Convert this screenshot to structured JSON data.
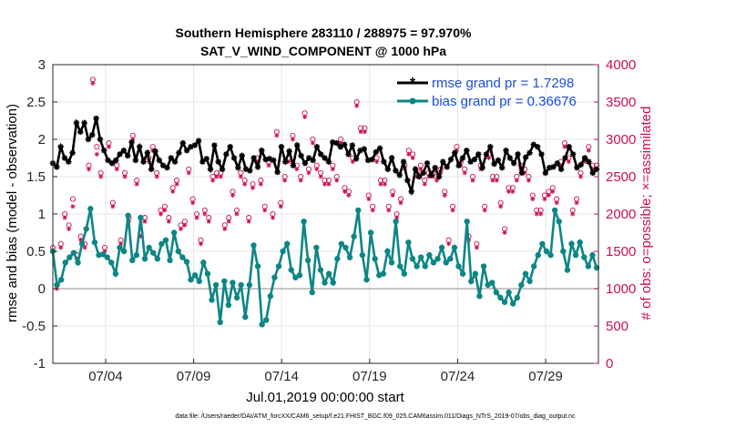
{
  "chart_data": {
    "type": "line",
    "title": "Southern Hemisphere 283110 / 288975 = 97.970%",
    "subtitle": "SAT_V_WIND_COMPONENT @ 1000 hPa",
    "xlabel": "Jul.01,2019 00:00:00 start",
    "ylabel": "rmse and bias (model - observation)",
    "y2label": "# of obs: o=possible; ×=assimilated",
    "footer": "data file: /Users/raeder/DAI/ATM_forcXX/CAM6_setup/f.e21.FHIST_BGC.f09_025.CAM6assim.011/Diags_NTrS_2019-07/obs_diag_output.nc",
    "x_ticks": [
      "07/04",
      "07/09",
      "07/14",
      "07/19",
      "07/24",
      "07/29"
    ],
    "x_tick_days": [
      4,
      9,
      14,
      19,
      24,
      29
    ],
    "xlim_days": [
      1,
      32
    ],
    "ylim": [
      -1,
      3
    ],
    "y_ticks": [
      "-1",
      "-0.5",
      "0",
      "0.5",
      "1",
      "1.5",
      "2",
      "2.5",
      "3"
    ],
    "y2lim": [
      0,
      4000
    ],
    "y2_ticks": [
      "0",
      "500",
      "1000",
      "1500",
      "2000",
      "2500",
      "3000",
      "3500",
      "4000"
    ],
    "grid": true,
    "legend_position": "top-right",
    "series": [
      {
        "name": "rmse grand pr = 1.7298",
        "color": "#000000",
        "marker": "asterisk",
        "values": [
          1.68,
          1.63,
          1.9,
          1.75,
          1.7,
          1.82,
          2.22,
          2.1,
          2.22,
          2.0,
          2.06,
          2.28,
          2.0,
          1.85,
          1.72,
          1.68,
          1.72,
          1.8,
          1.85,
          1.78,
          1.96,
          1.72,
          1.9,
          1.7,
          1.82,
          1.6,
          1.84,
          1.72,
          1.65,
          1.62,
          1.75,
          1.7,
          1.82,
          1.95,
          1.85,
          1.9,
          1.92,
          1.98,
          1.7,
          1.74,
          1.6,
          1.92,
          1.7,
          1.6,
          1.8,
          1.9,
          1.75,
          1.62,
          1.78,
          1.6,
          1.58,
          1.75,
          1.63,
          1.85,
          1.73,
          1.74,
          1.72,
          1.56,
          1.9,
          1.7,
          1.84,
          1.65,
          1.92,
          1.78,
          1.68,
          1.75,
          1.72,
          1.9,
          1.8,
          1.75,
          1.7,
          1.96,
          1.95,
          1.9,
          1.93,
          1.8,
          1.92,
          1.74,
          1.85,
          1.87,
          1.72,
          1.73,
          1.83,
          1.88,
          1.7,
          1.6,
          1.75,
          1.58,
          1.52,
          1.7,
          1.45,
          1.3,
          1.6,
          1.5,
          1.55,
          1.68,
          1.52,
          1.62,
          1.5,
          1.7,
          1.63,
          1.73,
          1.82,
          1.65,
          1.75,
          1.85,
          1.7,
          1.73,
          1.8,
          1.62,
          1.8,
          1.9,
          1.67,
          1.72,
          1.62,
          1.85,
          1.75,
          1.68,
          1.8,
          1.55,
          1.76,
          1.82,
          1.93,
          1.9,
          1.8,
          1.55,
          1.62,
          1.63,
          1.68,
          1.6,
          1.75,
          1.9,
          1.8,
          1.62,
          1.66,
          1.75,
          1.7,
          1.55,
          1.6
        ]
      },
      {
        "name": "bias grand pr = 0.36676",
        "color": "#0e8585",
        "marker": "circle",
        "values": [
          0.5,
          0.05,
          0.12,
          0.35,
          0.42,
          0.48,
          0.35,
          0.6,
          0.8,
          1.07,
          0.62,
          0.45,
          0.46,
          0.42,
          0.35,
          0.2,
          0.55,
          0.5,
          0.98,
          0.38,
          0.45,
          0.95,
          0.4,
          0.55,
          0.48,
          0.4,
          0.6,
          0.65,
          0.38,
          0.75,
          0.5,
          0.42,
          0.36,
          0.12,
          0.18,
          0.1,
          0.35,
          0.2,
          -0.15,
          0.05,
          -0.45,
          0.1,
          -0.22,
          0.08,
          -0.12,
          0.05,
          -0.38,
          0.05,
          0.58,
          0.3,
          -0.48,
          -0.42,
          -0.1,
          0.15,
          0.3,
          0.5,
          0.6,
          0.25,
          0.15,
          0.18,
          0.9,
          0.38,
          -0.05,
          0.55,
          0.25,
          0.08,
          0.2,
          0.08,
          0.4,
          0.6,
          0.55,
          0.42,
          0.7,
          1.05,
          0.45,
          0.12,
          0.75,
          0.4,
          0.18,
          0.2,
          0.5,
          0.35,
          0.9,
          0.3,
          0.2,
          0.62,
          0.4,
          0.3,
          0.42,
          0.3,
          0.45,
          0.35,
          0.4,
          0.55,
          0.35,
          0.4,
          0.55,
          0.3,
          0.2,
          0.9,
          0.1,
          0.2,
          -0.1,
          0.3,
          0.05,
          0.08,
          -0.05,
          -0.12,
          -0.18,
          -0.05,
          -0.2,
          -0.12,
          0.05,
          0.2,
          0.1,
          0.3,
          0.45,
          0.6,
          0.5,
          0.45,
          1.05,
          0.9,
          0.5,
          0.25,
          0.6,
          0.45,
          0.62,
          0.42,
          0.3,
          0.45,
          0.28
        ]
      },
      {
        "name": "possible",
        "color": "#cc0f4f",
        "marker": "o",
        "axis": "right",
        "values": [
          1550,
          1050,
          1600,
          2000,
          1850,
          2200,
          1450,
          1700,
          1600,
          2650,
          3800,
          2900,
          2550,
          1550,
          2950,
          2150,
          2650,
          1650,
          2550,
          1950,
          3050,
          2450,
          1750,
          1950,
          2750,
          2900,
          2550,
          2050,
          2100,
          1950,
          2350,
          2450,
          1850,
          1900,
          2600,
          2200,
          2000,
          1650,
          2050,
          1950,
          2500,
          2550,
          2550,
          1850,
          1950,
          2300,
          2050,
          2550,
          2450,
          1950,
          2400,
          2750,
          2450,
          2100,
          2700,
          2000,
          3100,
          2150,
          2500,
          2750,
          3050,
          2650,
          2500,
          3350,
          2600,
          3000,
          2650,
          2550,
          2450,
          2450,
          2650,
          2500,
          3000,
          2350,
          2300,
          2750,
          3500,
          3150,
          3150,
          2250,
          2100,
          2750,
          2450,
          2450,
          2100,
          2300,
          2000,
          2200,
          2650,
          2850,
          2800,
          2550,
          2650,
          2450,
          2550,
          2550,
          2500,
          2600,
          2300,
          1650,
          2100,
          2900,
          2700,
          2600,
          1700,
          2500,
          1600,
          2650,
          2100,
          2800,
          2500,
          2500,
          2150,
          1800,
          2350,
          2350,
          2500,
          2650,
          2600,
          2500,
          2250,
          2050,
          2050,
          2250,
          2300,
          2350,
          2200,
          2700,
          2950,
          2750,
          2050,
          2200,
          2550,
          2750,
          2900,
          2650,
          2650
        ]
      },
      {
        "name": "assimilated",
        "color": "#cc0f4f",
        "marker": "*",
        "axis": "right",
        "values": [
          1500,
          1000,
          1550,
          1950,
          1800,
          2100,
          1400,
          1650,
          1550,
          2600,
          3750,
          2800,
          2500,
          1500,
          2900,
          2100,
          2600,
          1600,
          2500,
          1900,
          3000,
          2400,
          1700,
          1900,
          2700,
          2850,
          2500,
          2000,
          2050,
          1900,
          2300,
          2400,
          1800,
          1850,
          2550,
          2150,
          1950,
          1600,
          2000,
          1900,
          2450,
          2500,
          2500,
          1800,
          1900,
          2250,
          2000,
          2500,
          2400,
          1900,
          2350,
          2700,
          2400,
          2050,
          2650,
          1950,
          3050,
          2100,
          2450,
          2700,
          3000,
          2600,
          2450,
          3300,
          2550,
          2950,
          2600,
          2500,
          2400,
          2400,
          2600,
          2450,
          2950,
          2300,
          2250,
          2700,
          3450,
          3100,
          3100,
          2200,
          2050,
          2700,
          2400,
          2400,
          2050,
          2250,
          1950,
          2150,
          2600,
          2800,
          2750,
          2500,
          2600,
          2400,
          2500,
          2500,
          2450,
          2550,
          2250,
          1600,
          2050,
          2850,
          2650,
          2550,
          1650,
          2450,
          1550,
          2600,
          2050,
          2750,
          2450,
          2450,
          2100,
          1750,
          2300,
          2300,
          2450,
          2600,
          2550,
          2450,
          2200,
          2000,
          2000,
          2200,
          2250,
          2300,
          2150,
          2650,
          2900,
          2700,
          2000,
          2150,
          2500,
          2700,
          2850,
          2600,
          2600
        ]
      }
    ]
  }
}
